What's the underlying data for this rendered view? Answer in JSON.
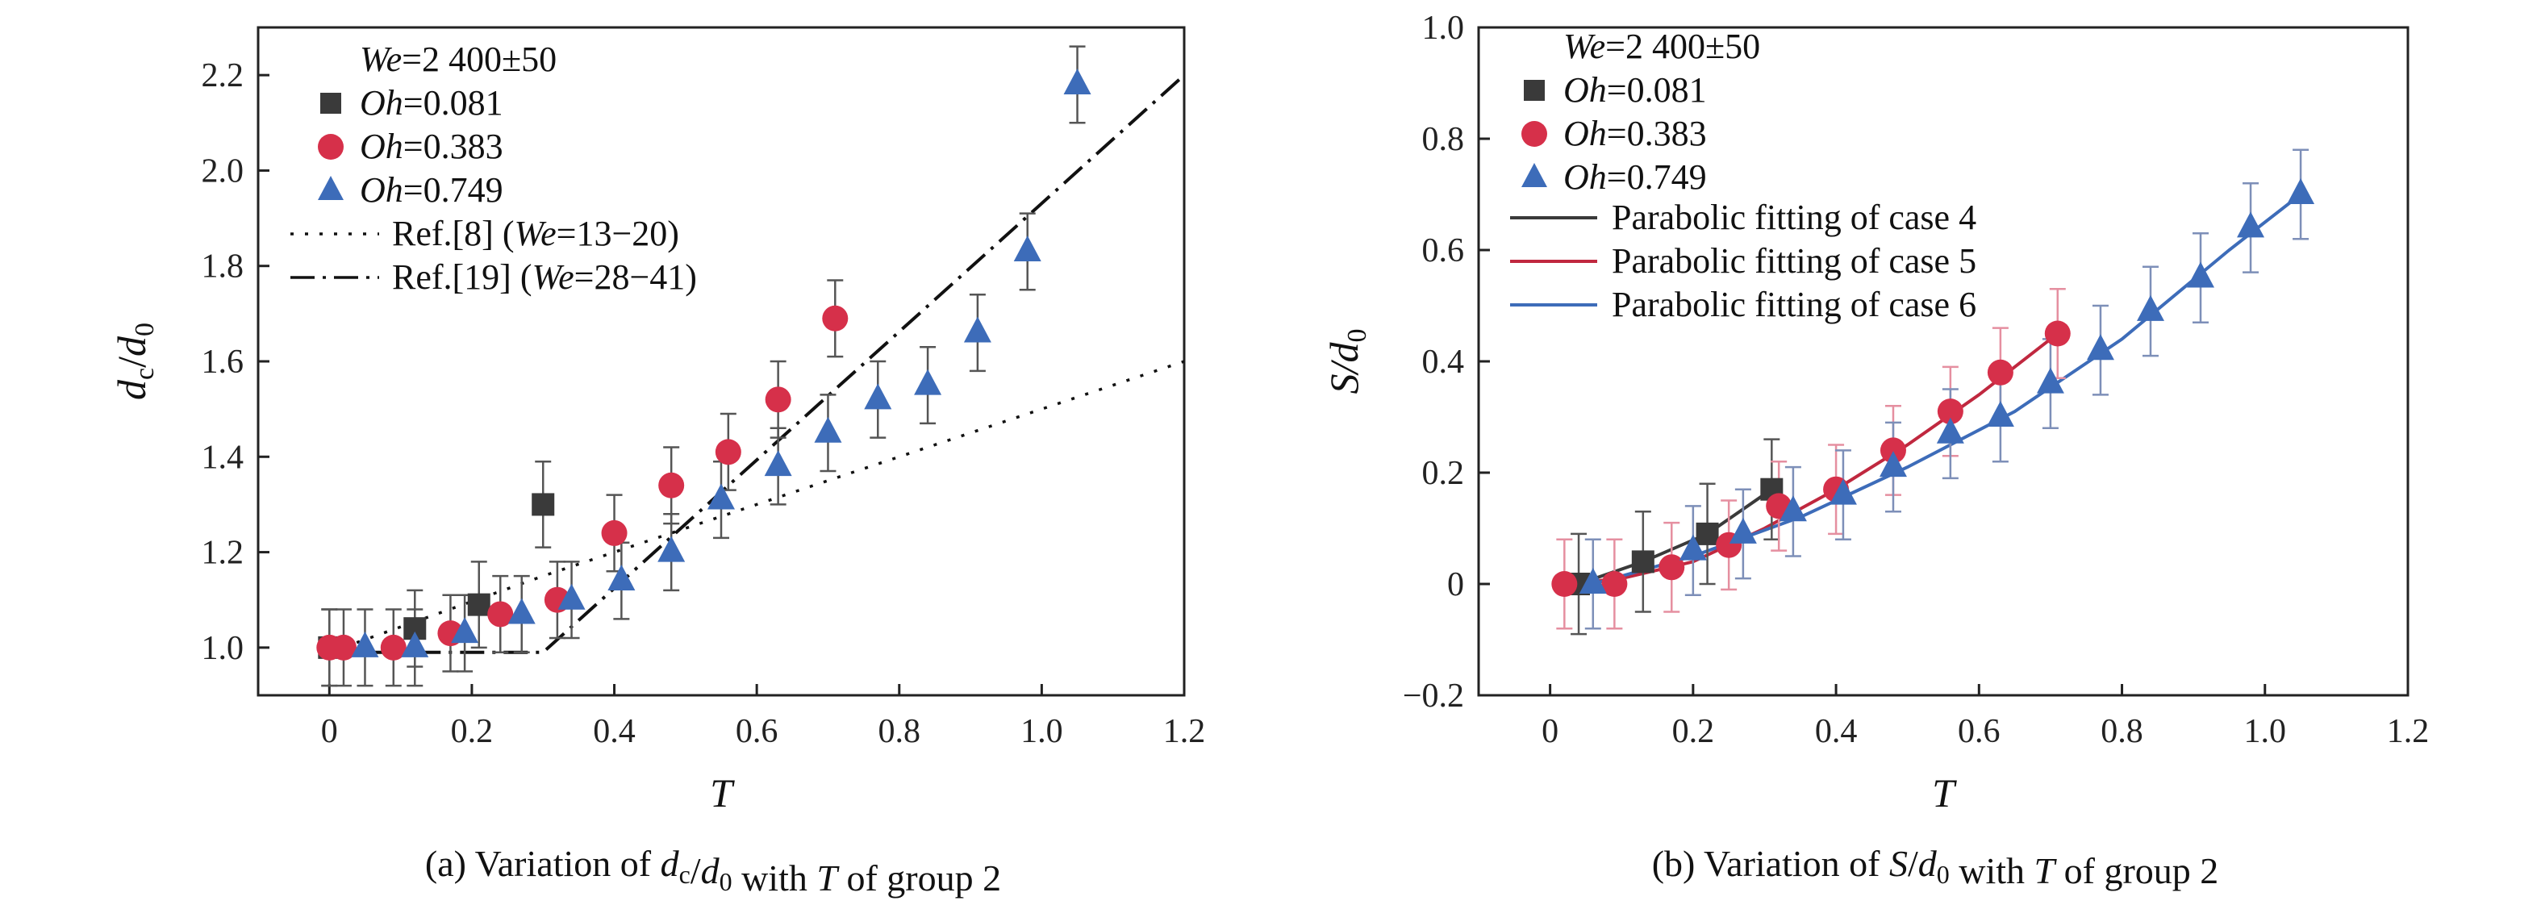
{
  "chart_data": [
    {
      "type": "scatter",
      "caption": "(a) Variation of d_c/d_0 with T of group 2",
      "xlabel": "T",
      "ylabel": "d_c/d_0",
      "xlim": [
        -0.1,
        1.2
      ],
      "ylim": [
        0.9,
        2.3
      ],
      "xticks": [
        "0",
        "0.2",
        "0.4",
        "0.6",
        "0.8",
        "1.0",
        "1.2"
      ],
      "yticks": [
        "1.0",
        "1.2",
        "1.4",
        "1.6",
        "1.8",
        "2.0",
        "2.2"
      ],
      "legend_header": "We=2 400±50",
      "series": [
        {
          "name": "Oh=0.081",
          "marker": "square",
          "color": "#3a3a3a",
          "x": [
            0.0,
            0.12,
            0.21,
            0.3
          ],
          "y": [
            1.0,
            1.04,
            1.09,
            1.3
          ],
          "err": [
            0.08,
            0.08,
            0.09,
            0.09
          ]
        },
        {
          "name": "Oh=0.383",
          "marker": "circle",
          "color": "#d6304a",
          "x": [
            0.0,
            0.02,
            0.09,
            0.17,
            0.24,
            0.32,
            0.4,
            0.48,
            0.56,
            0.63,
            0.71
          ],
          "y": [
            1.0,
            1.0,
            1.0,
            1.03,
            1.07,
            1.1,
            1.24,
            1.34,
            1.41,
            1.52,
            1.69
          ],
          "err": [
            0.08,
            0.08,
            0.08,
            0.08,
            0.08,
            0.08,
            0.08,
            0.08,
            0.08,
            0.08,
            0.08
          ]
        },
        {
          "name": "Oh=0.749",
          "marker": "triangle",
          "color": "#3d6cb9",
          "x": [
            0.05,
            0.12,
            0.19,
            0.27,
            0.34,
            0.41,
            0.48,
            0.55,
            0.63,
            0.7,
            0.77,
            0.84,
            0.91,
            0.98,
            1.05
          ],
          "y": [
            1.0,
            1.0,
            1.03,
            1.07,
            1.1,
            1.14,
            1.2,
            1.31,
            1.38,
            1.45,
            1.52,
            1.55,
            1.66,
            1.83,
            2.18
          ],
          "err": [
            0.08,
            0.08,
            0.08,
            0.08,
            0.08,
            0.08,
            0.08,
            0.08,
            0.08,
            0.08,
            0.08,
            0.08,
            0.08,
            0.08,
            0.08
          ]
        }
      ],
      "reference_lines": [
        {
          "name": "Ref.[8] (We=13−20)",
          "style": "dotted",
          "x": [
            0.0,
            0.3,
            1.2
          ],
          "y": [
            0.99,
            1.15,
            1.6
          ]
        },
        {
          "name": "Ref.[19] (We=28−41)",
          "style": "dashdot",
          "x": [
            0.0,
            0.3,
            1.2
          ],
          "y": [
            0.99,
            0.99,
            2.2
          ]
        }
      ]
    },
    {
      "type": "scatter",
      "caption": "(b) Variation of S/d_0 with T of group 2",
      "xlabel": "T",
      "ylabel": "S/d_0",
      "xlim": [
        -0.1,
        1.2
      ],
      "ylim": [
        -0.2,
        1.0
      ],
      "xticks": [
        "0",
        "0.2",
        "0.4",
        "0.6",
        "0.8",
        "1.0",
        "1.2"
      ],
      "yticks": [
        "−0.2",
        "0",
        "0.2",
        "0.4",
        "0.6",
        "0.8",
        "1.0"
      ],
      "legend_header": "We=2 400±50",
      "series": [
        {
          "name": "Oh=0.081",
          "marker": "square",
          "color": "#3a3a3a",
          "x": [
            0.04,
            0.13,
            0.22,
            0.31
          ],
          "y": [
            0.0,
            0.04,
            0.09,
            0.17
          ],
          "err": [
            0.09,
            0.09,
            0.09,
            0.09
          ]
        },
        {
          "name": "Oh=0.383",
          "marker": "circle",
          "color": "#d6304a",
          "x": [
            0.02,
            0.09,
            0.17,
            0.25,
            0.32,
            0.4,
            0.48,
            0.56,
            0.63,
            0.71
          ],
          "y": [
            0.0,
            0.0,
            0.03,
            0.07,
            0.14,
            0.17,
            0.24,
            0.31,
            0.38,
            0.45
          ],
          "err": [
            0.08,
            0.08,
            0.08,
            0.08,
            0.08,
            0.08,
            0.08,
            0.08,
            0.08,
            0.08
          ]
        },
        {
          "name": "Oh=0.749",
          "marker": "triangle",
          "color": "#3d6cb9",
          "x": [
            0.06,
            0.2,
            0.27,
            0.34,
            0.41,
            0.48,
            0.56,
            0.63,
            0.7,
            0.77,
            0.84,
            0.91,
            0.98,
            1.05
          ],
          "y": [
            0.0,
            0.06,
            0.09,
            0.13,
            0.16,
            0.21,
            0.27,
            0.3,
            0.36,
            0.42,
            0.49,
            0.55,
            0.64,
            0.7
          ],
          "err": [
            0.08,
            0.08,
            0.08,
            0.08,
            0.08,
            0.08,
            0.08,
            0.08,
            0.08,
            0.08,
            0.08,
            0.08,
            0.08,
            0.08
          ]
        }
      ],
      "fits": [
        {
          "name": "Parabolic fitting of case 4",
          "color": "#3a3a3a",
          "x": [
            0.04,
            0.13,
            0.22,
            0.31
          ],
          "y": [
            0.0,
            0.04,
            0.09,
            0.17
          ]
        },
        {
          "name": "Parabolic fitting of case 5",
          "color": "#c0283f",
          "x": [
            0.02,
            0.1,
            0.2,
            0.3,
            0.4,
            0.5,
            0.6,
            0.71
          ],
          "y": [
            0.0,
            0.01,
            0.04,
            0.1,
            0.17,
            0.25,
            0.34,
            0.45
          ]
        },
        {
          "name": "Parabolic fitting of case 6",
          "color": "#3d6cb9",
          "x": [
            0.06,
            0.2,
            0.35,
            0.5,
            0.65,
            0.8,
            0.95,
            1.05
          ],
          "y": [
            0.0,
            0.05,
            0.12,
            0.21,
            0.31,
            0.44,
            0.6,
            0.7
          ]
        }
      ]
    }
  ]
}
